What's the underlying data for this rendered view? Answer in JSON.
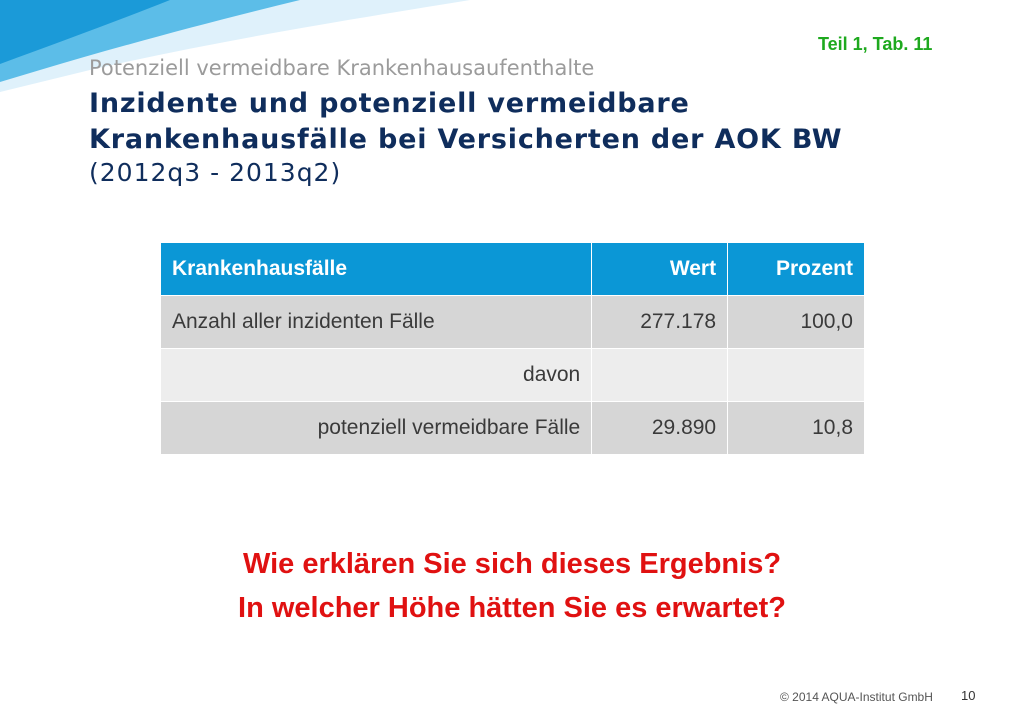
{
  "slide": {
    "reference": "Teil  1, Tab. 11",
    "kicker": "Potenziell vermeidbare Krankenhausaufenthalte",
    "title_line1": "Inzidente und potenziell vermeidbare",
    "title_line2": "Krankenhausfälle bei Versicherten der AOK BW",
    "period": "(2012q3 - 2013q2)",
    "question1": "Wie erklären Sie sich dieses Ergebnis?",
    "question2": "In welcher Höhe hätten Sie es erwartet?",
    "copyright": "© 2014 AQUA-Institut GmbH",
    "page_number": "10"
  },
  "table": {
    "headers": [
      "Krankenhausfälle",
      "Wert",
      "Prozent"
    ],
    "rows": [
      {
        "label": "Anzahl aller inzidenten Fälle",
        "wert": "277.178",
        "prozent": "100,0"
      },
      {
        "label": "davon",
        "wert": "",
        "prozent": ""
      },
      {
        "label": "potenziell vermeidbare Fälle",
        "wert": "29.890",
        "prozent": "10,8"
      }
    ]
  },
  "colors": {
    "header_blue": "#0b97d6",
    "title_navy": "#0f2d5c",
    "question_red": "#e01111",
    "reference_green": "#1ea91e"
  }
}
